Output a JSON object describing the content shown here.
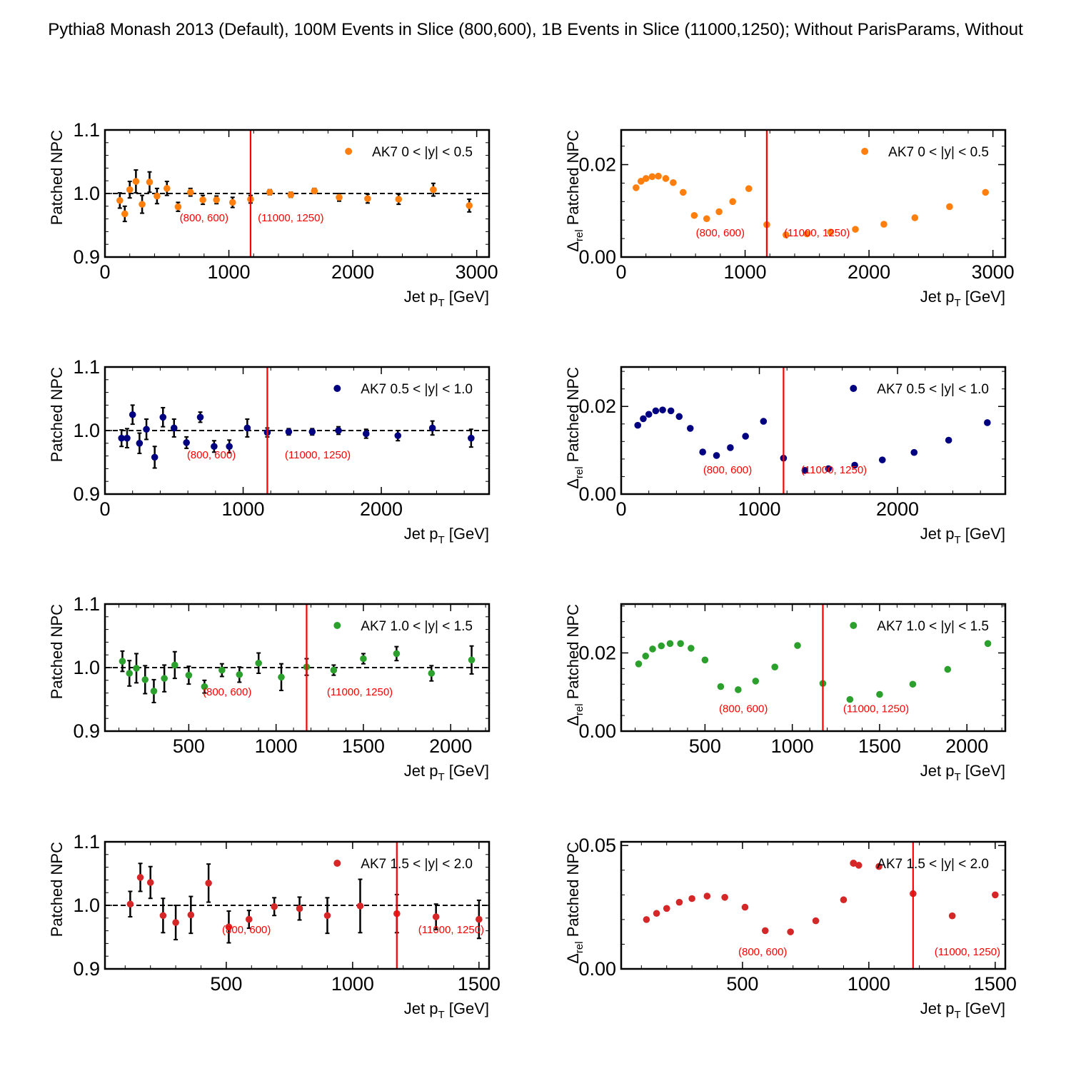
{
  "figure_title": "Pythia8 Monash 2013 (Default), 100M Events in Slice (800,600), 1B Events in Slice (11000,1250); Without ParisParams, Without",
  "colors": {
    "orange": "#ff7f0e",
    "navy": "#000080",
    "green": "#2ca02c",
    "red": "#d62728",
    "cut_line": "#ff0000",
    "annotation": "#ff0000"
  },
  "chart_data": [
    {
      "type": "scatter",
      "panel": "row1-left",
      "xlabel": "Jet p_T [GeV]",
      "ylabel": "Patched NPC",
      "xlim": [
        0,
        3100
      ],
      "ylim": [
        0.9,
        1.1
      ],
      "xticks": [
        0,
        1000,
        2000,
        3000
      ],
      "yticks": [
        0.9,
        1.0,
        1.1
      ],
      "grid": false,
      "legend": "top-right",
      "reference_line": 1.0,
      "vline": 1175,
      "annotations": [
        {
          "text": "(800, 600)",
          "x": 800,
          "y": 0.956
        },
        {
          "text": "(11000, 1250)",
          "x": 1500,
          "y": 0.956
        }
      ],
      "series": [
        {
          "name": "AK7 0 < |y| < 0.5",
          "color": "orange",
          "error_bars": true,
          "x": [
            120,
            160,
            200,
            250,
            300,
            360,
            420,
            500,
            590,
            690,
            790,
            900,
            1030,
            1175,
            1330,
            1500,
            1690,
            1890,
            2120,
            2370,
            2650,
            2940
          ],
          "y": [
            0.989,
            0.968,
            1.006,
            1.019,
            0.983,
            1.018,
            0.996,
            1.008,
            0.979,
            1.002,
            0.99,
            0.99,
            0.986,
            0.991,
            1.002,
            0.998,
            1.004,
            0.994,
            0.992,
            0.991,
            1.006,
            0.981
          ],
          "yerr": [
            0.012,
            0.012,
            0.013,
            0.018,
            0.014,
            0.016,
            0.012,
            0.011,
            0.007,
            0.006,
            0.007,
            0.006,
            0.008,
            0.006,
            0.004,
            0.004,
            0.004,
            0.006,
            0.007,
            0.008,
            0.01,
            0.01
          ]
        }
      ]
    },
    {
      "type": "scatter",
      "panel": "row1-right",
      "xlabel": "Jet p_T [GeV]",
      "ylabel": "Δ_rel Patched NPC",
      "xlim": [
        0,
        3100
      ],
      "ylim": [
        0,
        0.0275
      ],
      "xticks": [
        0,
        1000,
        2000,
        3000
      ],
      "yticks": [
        0.0,
        0.02
      ],
      "ytick_labels": [
        "0.00",
        "0.02"
      ],
      "grid": false,
      "legend": "top-right",
      "vline": 1175,
      "annotations": [
        {
          "text": "(800, 600)",
          "x": 800,
          "y": 0.0045
        },
        {
          "text": "(11000, 1250)",
          "x": 1580,
          "y": 0.0045
        }
      ],
      "series": [
        {
          "name": "AK7 0 < |y| < 0.5",
          "color": "orange",
          "error_bars": false,
          "x": [
            120,
            160,
            200,
            250,
            300,
            360,
            420,
            500,
            590,
            690,
            790,
            900,
            1030,
            1175,
            1330,
            1500,
            1690,
            1890,
            2120,
            2370,
            2650,
            2940
          ],
          "y": [
            0.015,
            0.0164,
            0.017,
            0.0174,
            0.0175,
            0.017,
            0.0161,
            0.014,
            0.009,
            0.0083,
            0.0098,
            0.012,
            0.0148,
            0.007,
            0.0048,
            0.005,
            0.0054,
            0.006,
            0.0071,
            0.0085,
            0.0109,
            0.014
          ]
        }
      ]
    },
    {
      "type": "scatter",
      "panel": "row2-left",
      "xlabel": "Jet p_T [GeV]",
      "ylabel": "Patched NPC",
      "xlim": [
        0,
        2780
      ],
      "ylim": [
        0.9,
        1.1
      ],
      "xticks": [
        0,
        1000,
        2000
      ],
      "yticks": [
        0.9,
        1.0,
        1.1
      ],
      "grid": false,
      "legend": "top-right",
      "reference_line": 1.0,
      "vline": 1175,
      "annotations": [
        {
          "text": "(800, 600)",
          "x": 770,
          "y": 0.956
        },
        {
          "text": "(11000, 1250)",
          "x": 1540,
          "y": 0.956
        }
      ],
      "series": [
        {
          "name": "AK7 0.5 < |y| < 1.0",
          "color": "navy",
          "error_bars": true,
          "x": [
            120,
            160,
            200,
            250,
            300,
            360,
            420,
            500,
            590,
            690,
            790,
            900,
            1030,
            1175,
            1330,
            1500,
            1690,
            1890,
            2120,
            2370,
            2650
          ],
          "y": [
            0.988,
            0.988,
            1.025,
            0.98,
            1.002,
            0.958,
            1.021,
            1.004,
            0.981,
            1.021,
            0.975,
            0.975,
            1.004,
            0.997,
            0.998,
            0.998,
            1.0,
            0.995,
            0.992,
            1.004,
            0.988
          ],
          "yerr": [
            0.013,
            0.015,
            0.015,
            0.016,
            0.016,
            0.017,
            0.015,
            0.014,
            0.009,
            0.008,
            0.009,
            0.01,
            0.014,
            0.007,
            0.005,
            0.005,
            0.006,
            0.007,
            0.008,
            0.011,
            0.014
          ]
        }
      ]
    },
    {
      "type": "scatter",
      "panel": "row2-right",
      "xlabel": "Jet p_T [GeV]",
      "ylabel": "Δ_rel Patched NPC",
      "xlim": [
        0,
        2780
      ],
      "ylim": [
        0,
        0.029
      ],
      "xticks": [
        0,
        1000,
        2000
      ],
      "yticks": [
        0.0,
        0.02
      ],
      "ytick_labels": [
        "0.00",
        "0.02"
      ],
      "grid": false,
      "legend": "top-right",
      "vline": 1175,
      "annotations": [
        {
          "text": "(800, 600)",
          "x": 770,
          "y": 0.0047
        },
        {
          "text": "(11000, 1250)",
          "x": 1540,
          "y": 0.0047
        }
      ],
      "series": [
        {
          "name": "AK7 0.5 < |y| < 1.0",
          "color": "navy",
          "error_bars": false,
          "x": [
            120,
            160,
            200,
            250,
            300,
            360,
            420,
            500,
            590,
            690,
            790,
            900,
            1030,
            1175,
            1330,
            1500,
            1690,
            1890,
            2120,
            2370,
            2650
          ],
          "y": [
            0.0157,
            0.0172,
            0.0182,
            0.019,
            0.0192,
            0.019,
            0.0177,
            0.015,
            0.0096,
            0.0088,
            0.0106,
            0.0132,
            0.0166,
            0.0082,
            0.0054,
            0.0058,
            0.0066,
            0.0078,
            0.0095,
            0.0123,
            0.0163
          ]
        }
      ]
    },
    {
      "type": "scatter",
      "panel": "row3-left",
      "xlabel": "Jet p_T [GeV]",
      "ylabel": "Patched NPC",
      "xlim": [
        20,
        2220
      ],
      "ylim": [
        0.9,
        1.1
      ],
      "xticks": [
        500,
        1000,
        1500,
        2000
      ],
      "yticks": [
        0.9,
        1.0,
        1.1
      ],
      "grid": false,
      "legend": "top-right",
      "reference_line": 1.0,
      "vline": 1175,
      "annotations": [
        {
          "text": "(800, 600)",
          "x": 720,
          "y": 0.956
        },
        {
          "text": "(11000, 1250)",
          "x": 1480,
          "y": 0.956
        }
      ],
      "series": [
        {
          "name": "AK7 1.0 < |y| < 1.5",
          "color": "green",
          "error_bars": true,
          "x": [
            120,
            160,
            200,
            250,
            300,
            360,
            420,
            500,
            590,
            690,
            790,
            900,
            1030,
            1175,
            1330,
            1500,
            1690,
            1890,
            2120
          ],
          "y": [
            1.01,
            0.991,
            0.999,
            0.981,
            0.963,
            0.983,
            1.004,
            0.988,
            0.97,
            0.996,
            0.989,
            1.007,
            0.985,
            1.001,
            0.996,
            1.014,
            1.022,
            0.991,
            1.012
          ],
          "yerr": [
            0.016,
            0.02,
            0.023,
            0.022,
            0.018,
            0.021,
            0.021,
            0.014,
            0.01,
            0.01,
            0.012,
            0.016,
            0.021,
            0.013,
            0.008,
            0.008,
            0.011,
            0.012,
            0.022
          ]
        }
      ]
    },
    {
      "type": "scatter",
      "panel": "row3-right",
      "xlabel": "Jet p_T [GeV]",
      "ylabel": "Δ_rel Patched NPC",
      "xlim": [
        20,
        2220
      ],
      "ylim": [
        0,
        0.0325
      ],
      "xticks": [
        500,
        1000,
        1500,
        2000
      ],
      "yticks": [
        0.0,
        0.02
      ],
      "ytick_labels": [
        "0.00",
        "0.02"
      ],
      "grid": false,
      "legend": "top-right",
      "vline": 1175,
      "annotations": [
        {
          "text": "(800, 600)",
          "x": 720,
          "y": 0.0048
        },
        {
          "text": "(11000, 1250)",
          "x": 1480,
          "y": 0.0048
        }
      ],
      "series": [
        {
          "name": "AK7 1.0 < |y| < 1.5",
          "color": "green",
          "error_bars": false,
          "x": [
            120,
            160,
            200,
            250,
            300,
            360,
            420,
            500,
            590,
            690,
            790,
            900,
            1030,
            1175,
            1330,
            1500,
            1690,
            1890,
            2120
          ],
          "y": [
            0.0172,
            0.0192,
            0.021,
            0.0218,
            0.0224,
            0.0224,
            0.0212,
            0.0182,
            0.0114,
            0.0106,
            0.0128,
            0.0164,
            0.0219,
            0.0122,
            0.0081,
            0.0094,
            0.012,
            0.0158,
            0.0224
          ]
        }
      ]
    },
    {
      "type": "scatter",
      "panel": "row4-left",
      "xlabel": "Jet p_T [GeV]",
      "ylabel": "Patched NPC",
      "xlim": [
        20,
        1540
      ],
      "ylim": [
        0.9,
        1.1
      ],
      "xticks": [
        500,
        1000,
        1500
      ],
      "yticks": [
        0.9,
        1.0,
        1.1
      ],
      "grid": false,
      "legend": "top-right",
      "reference_line": 1.0,
      "vline": 1175,
      "annotations": [
        {
          "text": "(800, 600)",
          "x": 580,
          "y": 0.956
        },
        {
          "text": "(11000, 1250)",
          "x": 1390,
          "y": 0.956
        }
      ],
      "series": [
        {
          "name": "AK7 1.5 < |y| < 2.0",
          "color": "red",
          "error_bars": true,
          "x": [
            120,
            160,
            200,
            250,
            300,
            360,
            430,
            510,
            590,
            690,
            790,
            900,
            1030,
            1175,
            1330,
            1500
          ],
          "y": [
            1.002,
            1.044,
            1.036,
            0.984,
            0.973,
            0.985,
            1.035,
            0.966,
            0.978,
            0.998,
            0.995,
            0.984,
            0.999,
            0.987,
            0.982,
            0.978
          ],
          "yerr": [
            0.02,
            0.022,
            0.025,
            0.027,
            0.027,
            0.029,
            0.03,
            0.025,
            0.014,
            0.014,
            0.018,
            0.028,
            0.042,
            0.03,
            0.02,
            0.03
          ]
        }
      ]
    },
    {
      "type": "scatter",
      "panel": "row4-right",
      "xlabel": "Jet p_T [GeV]",
      "ylabel": "Δ_rel Patched NPC",
      "xlim": [
        20,
        1540
      ],
      "ylim": [
        0,
        0.0515
      ],
      "xticks": [
        500,
        1000,
        1500
      ],
      "yticks": [
        0.0,
        0.05
      ],
      "ytick_labels": [
        "0.00",
        "0.05"
      ],
      "grid": false,
      "legend": "top-right",
      "vline": 1175,
      "annotations": [
        {
          "text": "(800, 600)",
          "x": 580,
          "y": 0.0055
        },
        {
          "text": "(11000, 1250)",
          "x": 1390,
          "y": 0.0055
        }
      ],
      "series": [
        {
          "name": "AK7 1.5 < |y| < 2.0",
          "color": "red",
          "error_bars": false,
          "x": [
            120,
            160,
            200,
            250,
            300,
            360,
            430,
            510,
            590,
            690,
            790,
            900,
            960,
            1040,
            1175,
            1330,
            1500
          ],
          "y": [
            0.02,
            0.0225,
            0.0245,
            0.027,
            0.0285,
            0.0295,
            0.029,
            0.025,
            0.0155,
            0.015,
            0.0195,
            0.028,
            0.042,
            0.0415,
            0.0305,
            0.0215,
            0.03
          ]
        }
      ]
    }
  ]
}
